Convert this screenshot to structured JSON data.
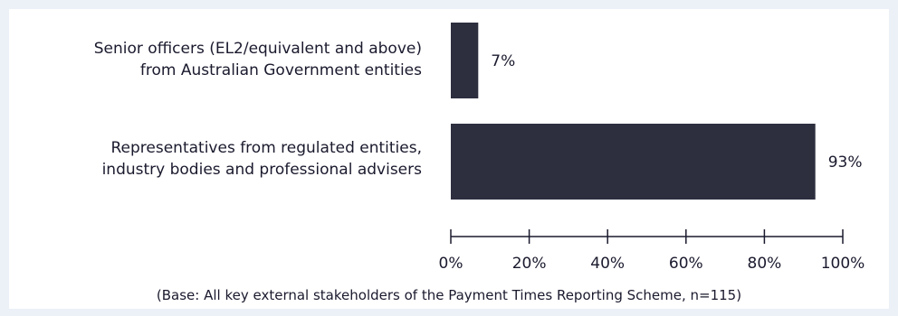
{
  "chart_data": {
    "type": "bar",
    "orientation": "horizontal",
    "categories": [
      [
        "Senior officers (EL2/equivalent and above)",
        "from Australian Government entities"
      ],
      [
        "Representatives from regulated entities,",
        "industry bodies and professional advisers"
      ]
    ],
    "values": [
      7,
      93
    ],
    "data_labels": [
      "7%",
      "93%"
    ],
    "xlim": [
      0,
      100
    ],
    "xticks": [
      0,
      20,
      40,
      60,
      80,
      100
    ],
    "xtick_labels": [
      "0%",
      "20%",
      "40%",
      "60%",
      "80%",
      "100%"
    ],
    "grid": false,
    "legend": "none",
    "bar_color": "#2d2f3f",
    "note": "(Base: All key external stakeholders of the Payment Times Reporting Scheme, n=115)"
  }
}
